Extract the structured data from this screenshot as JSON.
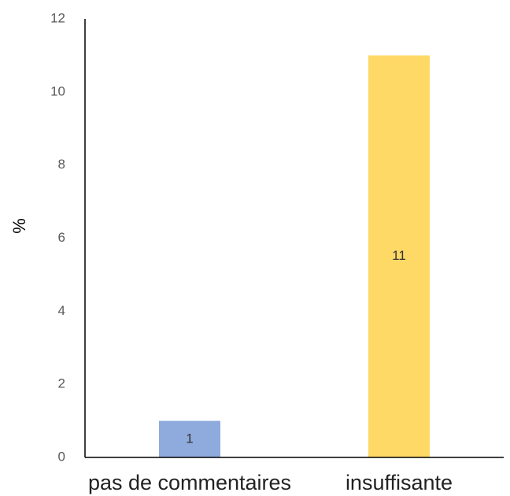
{
  "chart_data": {
    "type": "bar",
    "title": "",
    "xlabel": "",
    "ylabel": "%",
    "ylim": [
      0,
      12
    ],
    "yticks": [
      0,
      2,
      4,
      6,
      8,
      10,
      12
    ],
    "grid": false,
    "categories": [
      "pas de commentaires",
      "insuffisante"
    ],
    "values": [
      1,
      11
    ],
    "data_labels": [
      "1",
      "11"
    ],
    "colors": [
      "#8FAADC",
      "#FFD966"
    ]
  }
}
